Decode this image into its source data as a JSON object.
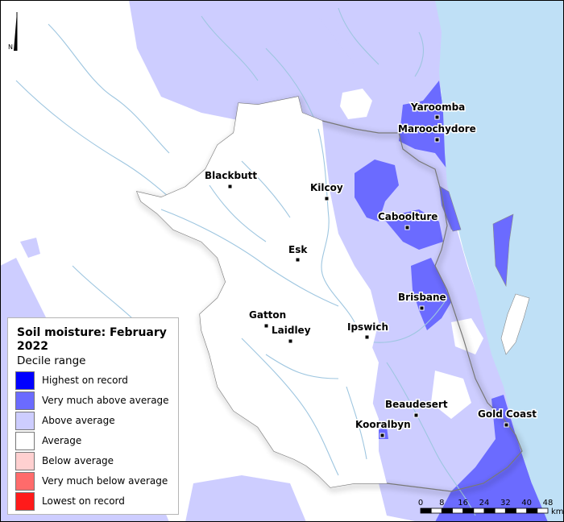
{
  "legend": {
    "title": "Soil moisture: February 2022",
    "subtitle": "Decile range",
    "items": [
      {
        "label": "Highest on record",
        "color": "#0000ff"
      },
      {
        "label": "Very much above average",
        "color": "#6b6bff"
      },
      {
        "label": "Above average",
        "color": "#cdcdff"
      },
      {
        "label": "Average",
        "color": "#ffffff"
      },
      {
        "label": "Below average",
        "color": "#ffd0d0"
      },
      {
        "label": "Very much below average",
        "color": "#ff6b6b"
      },
      {
        "label": "Lowest on record",
        "color": "#ff1a1a"
      }
    ]
  },
  "north_arrow": {
    "label": "N"
  },
  "scale_bar": {
    "ticks": [
      "0",
      "8",
      "16",
      "24",
      "32",
      "40",
      "48"
    ],
    "unit": "km"
  },
  "places": {
    "yaroomba": "Yaroomba",
    "maroochydore": "Maroochydore",
    "blackbutt": "Blackbutt",
    "kilcoy": "Kilcoy",
    "caboolture": "Caboolture",
    "esk": "Esk",
    "brisbane": "Brisbane",
    "gatton": "Gatton",
    "laidley": "Laidley",
    "ipswich": "Ipswich",
    "beaudesert": "Beaudesert",
    "gold_coast": "Gold Coast",
    "kooralbyn": "Kooralbyn"
  },
  "colors": {
    "ocean": "#bfe0f6",
    "above_average": "#cdcdff",
    "very_much_above": "#6b6bff",
    "river": "#9ec6e0"
  }
}
